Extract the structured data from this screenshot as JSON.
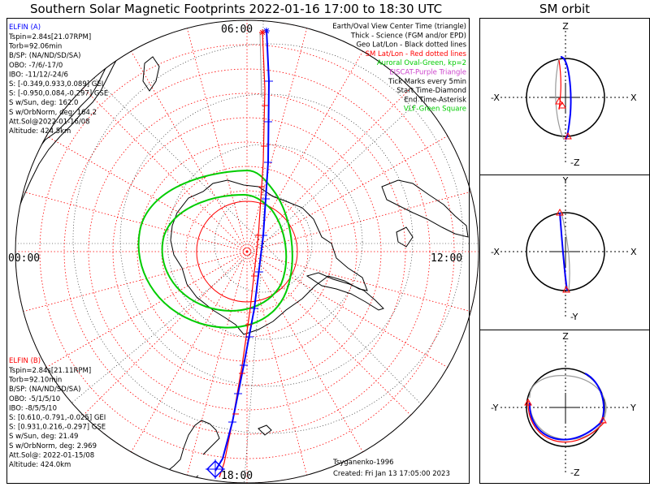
{
  "header": {
    "title": "Southern Solar Magnetic Footprints 2022-01-16 17:00 to 18:30 UTC",
    "orbit_title": "SM orbit"
  },
  "mlt_labels": {
    "top": "06:00",
    "left": "00:00",
    "right": "12:00",
    "bottom": "18:00"
  },
  "probe_a": {
    "name": "ELFIN (A)",
    "color": "#0000ff",
    "lines": [
      "Tspin=2.84s[21.07RPM]",
      "Torb=92.06min",
      "B/SP: (NA/ND/SD/SA)",
      "OBO: -7/6/-17/0",
      "IBO: -11/12/-24/6",
      "S: [-0.349,0.933,0.089] GEI",
      "S: [-0.950,0.084,-0.297] GSE",
      "S w/Sun, deg: 162.0",
      "S w/OrbNorm, deg: 164.2",
      "Att.Sol@2022-01-16/08",
      "Altitude: 424.5km"
    ]
  },
  "probe_b": {
    "name": "ELFIN (B)",
    "color": "#ff0000",
    "lines": [
      "Tspin=2.84s[21.11RPM]",
      "Torb=92.10min",
      "B/SP: (NA/ND/SD/SA)",
      "OBO: -5/1/5/10",
      "IBO: -8/5/5/10",
      "S: [0.610,-0.791,-0.025] GEI",
      "S: [0.931,0.216,-0.297] GSE",
      "S w/Sun, deg: 21.49",
      "S w/OrbNorm, deg: 2.969",
      "Att.Sol@: 2022-01-15/08",
      "Altitude: 424.0km"
    ]
  },
  "legend": [
    {
      "text": "Earth/Oval View Center Time (triangle)",
      "color": "#000000"
    },
    {
      "text": "Thick - Science (FGM and/or EPD)",
      "color": "#000000"
    },
    {
      "text": "Geo Lat/Lon - Black dotted lines",
      "color": "#000000"
    },
    {
      "text": "SM Lat/Lon - Red dotted lines",
      "color": "#ff0000"
    },
    {
      "text": "Auroral Oval-Green, kp=2",
      "color": "#00cc00"
    },
    {
      "text": "EISCAT-Purple Triangle",
      "color": "#cc44cc"
    },
    {
      "text": "Tick Marks every 5min",
      "color": "#000000"
    },
    {
      "text": "Start Time-Diamond",
      "color": "#000000"
    },
    {
      "text": "End Time-Asterisk",
      "color": "#000000"
    },
    {
      "text": "VLF-Green Square",
      "color": "#00cc00"
    }
  ],
  "footer": {
    "model": "Tsyganenko-1996",
    "created": "Created: Fri Jan 13 17:05:00 2023"
  },
  "orbit_panels": [
    {
      "top": "Z",
      "bottom": "-Z",
      "left": "-X",
      "right": "X"
    },
    {
      "top": "Y",
      "bottom": "-Y",
      "left": "-X",
      "right": "X"
    },
    {
      "top": "Z",
      "bottom": "-Z",
      "left": "-Y",
      "right": "Y"
    }
  ],
  "colors": {
    "probe_a": "#0000ff",
    "probe_b": "#ff0000",
    "oval": "#00cc00",
    "sm_grid": "#ff0000",
    "geo": "#000000"
  }
}
